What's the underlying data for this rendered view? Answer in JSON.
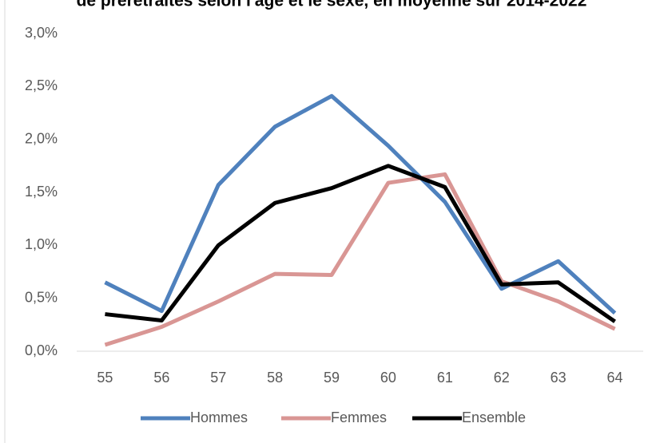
{
  "chart_data": {
    "type": "line",
    "title": "de préretraités selon l'âge et le sexe, en moyenne sur 2014-2022",
    "categories": [
      "55",
      "56",
      "57",
      "58",
      "59",
      "60",
      "61",
      "62",
      "63",
      "64"
    ],
    "series": [
      {
        "name": "Hommes",
        "color": "#4f81bd",
        "values": [
          0.65,
          0.38,
          1.57,
          2.12,
          2.41,
          1.94,
          1.41,
          0.59,
          0.85,
          0.36
        ]
      },
      {
        "name": "Femmes",
        "color": "#d99694",
        "values": [
          0.06,
          0.23,
          0.47,
          0.73,
          0.72,
          1.59,
          1.67,
          0.66,
          0.47,
          0.21
        ]
      },
      {
        "name": "Ensemble",
        "color": "#000000",
        "values": [
          0.35,
          0.29,
          1.0,
          1.4,
          1.54,
          1.75,
          1.55,
          0.63,
          0.65,
          0.28
        ]
      }
    ],
    "ylim": [
      0,
      3
    ],
    "yticks": [
      {
        "value": 0,
        "label": "0,0%"
      },
      {
        "value": 0.5,
        "label": "0,5%"
      },
      {
        "value": 1,
        "label": "1,0%"
      },
      {
        "value": 1.5,
        "label": "1,5%"
      },
      {
        "value": 2,
        "label": "2,0%"
      },
      {
        "value": 2.5,
        "label": "2,5%"
      },
      {
        "value": 3,
        "label": "3,0%"
      }
    ],
    "grid": false,
    "legend": "bottom"
  }
}
